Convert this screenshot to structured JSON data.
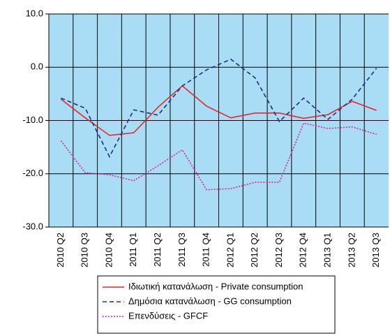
{
  "chart_data": {
    "type": "line",
    "categories": [
      "2010 Q2",
      "2010 Q3",
      "2010 Q4",
      "2011 Q1",
      "2011 Q2",
      "2011 Q3",
      "2011 Q4",
      "2012 Q1",
      "2012 Q2",
      "2012 Q3",
      "2012 Q4",
      "2013 Q1",
      "2013 Q2",
      "2013 Q3"
    ],
    "series": [
      {
        "name": "Ιδιωτική κατανάλωση - Private consumption",
        "color": "#e8262b",
        "style": "solid",
        "values": [
          -6,
          -9.5,
          -12.8,
          -12.3,
          -7.5,
          -3.5,
          -7.3,
          -9.5,
          -8.6,
          -8.6,
          -9.6,
          -8.9,
          -6.4,
          -8.1
        ]
      },
      {
        "name": "Δημόσια κατανάλωση - GG consumption",
        "color": "#1f2f7a",
        "style": "dashed",
        "values": [
          -5.8,
          -7.7,
          -16.8,
          -8,
          -9,
          -3.5,
          -0.5,
          1.5,
          -2,
          -10.2,
          -5.8,
          -9.8,
          -6,
          -0.2
        ]
      },
      {
        "name": "Επενδύσεις - GFCF",
        "color": "#e0219a",
        "style": "dotted",
        "values": [
          -13.8,
          -19.8,
          -20.2,
          -21.3,
          -18.5,
          -15.5,
          -23,
          -22.8,
          -21.6,
          -21.6,
          -10.5,
          -11.5,
          -11.2,
          -12.6
        ]
      }
    ],
    "ylim": [
      -30,
      10
    ],
    "yticks": [
      {
        "value": -30,
        "label": "-30.0"
      },
      {
        "value": -20,
        "label": "-20.0"
      },
      {
        "value": -10,
        "label": "-10.0"
      },
      {
        "value": 0,
        "label": "0.0"
      },
      {
        "value": 10,
        "label": "10.0"
      }
    ],
    "grid": true,
    "background": "#a9dcf5",
    "legend": "bottom"
  }
}
